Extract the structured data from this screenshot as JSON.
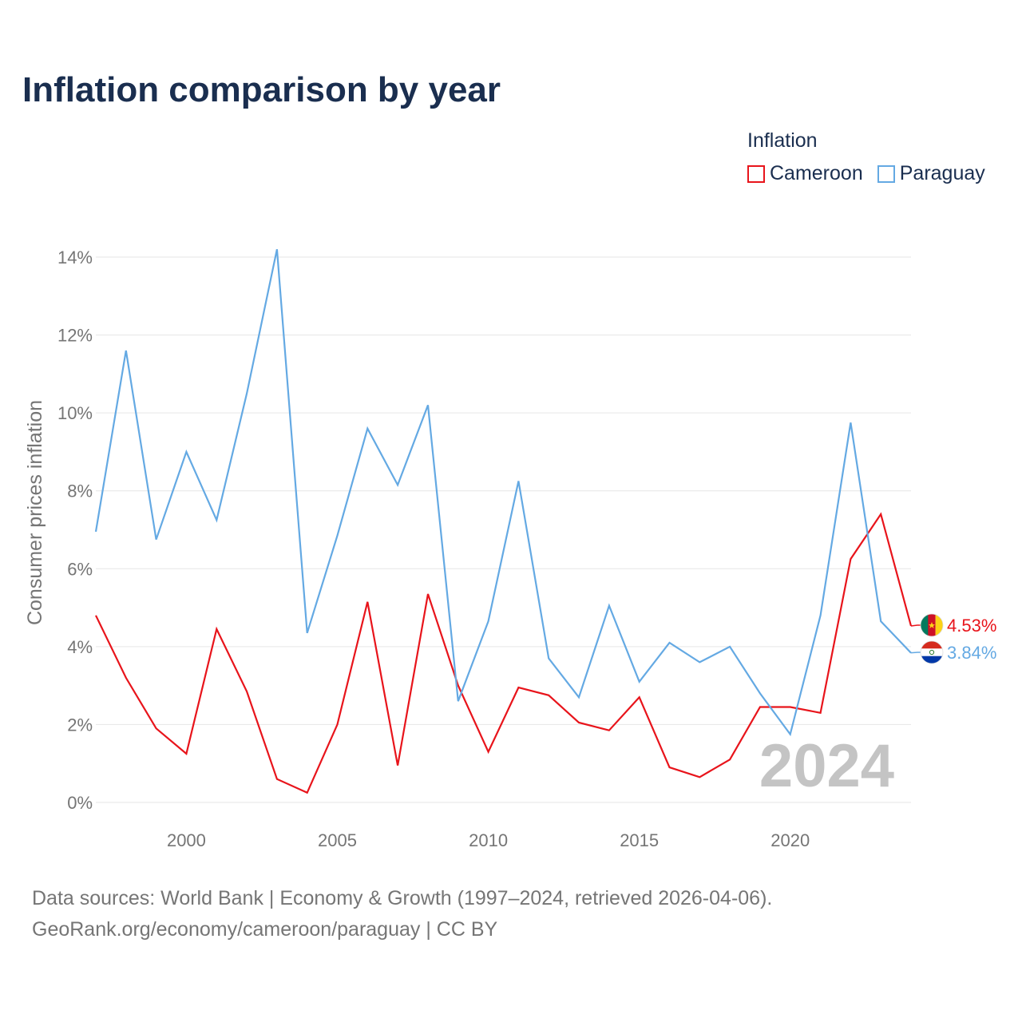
{
  "title": "Inflation comparison by year",
  "legend": {
    "title": "Inflation",
    "items": [
      {
        "label": "Cameroon",
        "color": "#e8141b"
      },
      {
        "label": "Paraguay",
        "color": "#64a9e3"
      }
    ]
  },
  "year_watermark": "2024",
  "source_line1": "Data sources: World Bank | Economy & Growth (1997–2024, retrieved 2026-04-06).",
  "source_line2": "GeoRank.org/economy/cameroon/paraguay | CC BY",
  "chart_data": {
    "type": "line",
    "title": "Inflation comparison by year",
    "xlabel": "",
    "ylabel": "Consumer prices inflation",
    "xlim": [
      1997,
      2024
    ],
    "ylim": [
      0,
      14
    ],
    "x_ticks": [
      2000,
      2005,
      2010,
      2015,
      2020
    ],
    "y_ticks": [
      0,
      2,
      4,
      6,
      8,
      10,
      12,
      14
    ],
    "y_tick_labels": [
      "0%",
      "2%",
      "4%",
      "6%",
      "8%",
      "10%",
      "12%",
      "14%"
    ],
    "x": [
      1997,
      1998,
      1999,
      2000,
      2001,
      2002,
      2003,
      2004,
      2005,
      2006,
      2007,
      2008,
      2009,
      2010,
      2011,
      2012,
      2013,
      2014,
      2015,
      2016,
      2017,
      2018,
      2019,
      2020,
      2021,
      2022,
      2023,
      2024
    ],
    "series": [
      {
        "name": "Cameroon",
        "color": "#e8141b",
        "end_label": "4.53%",
        "flag": "cameroon-flag",
        "values": [
          4.8,
          3.2,
          1.9,
          1.25,
          4.45,
          2.85,
          0.6,
          0.25,
          2.0,
          5.15,
          0.95,
          5.35,
          3.0,
          1.3,
          2.95,
          2.75,
          2.05,
          1.85,
          2.7,
          0.9,
          0.65,
          1.1,
          2.45,
          2.45,
          2.3,
          6.25,
          7.4,
          4.53
        ]
      },
      {
        "name": "Paraguay",
        "color": "#64a9e3",
        "end_label": "3.84%",
        "flag": "paraguay-flag",
        "values": [
          6.95,
          11.6,
          6.75,
          9.0,
          7.25,
          10.5,
          14.2,
          4.35,
          6.85,
          9.6,
          8.15,
          10.2,
          2.6,
          4.65,
          8.25,
          3.7,
          2.7,
          5.05,
          3.1,
          4.1,
          3.6,
          4.0,
          2.8,
          1.75,
          4.8,
          9.75,
          4.65,
          3.84
        ]
      }
    ]
  }
}
